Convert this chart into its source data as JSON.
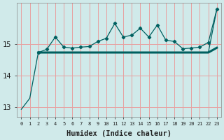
{
  "title": "",
  "xlabel": "Humidex (Indice chaleur)",
  "bg_color": "#d0eaea",
  "grid_color": "#e8a0a0",
  "line_color": "#006060",
  "xlim": [
    -0.5,
    23.5
  ],
  "ylim": [
    12.7,
    16.3
  ],
  "yticks": [
    13,
    14,
    15
  ],
  "xtick_labels": [
    "0",
    "1",
    "2",
    "3",
    "4",
    "5",
    "6",
    "7",
    "8",
    "9",
    "10",
    "11",
    "12",
    "13",
    "14",
    "15",
    "16",
    "17",
    "18",
    "19",
    "20",
    "21",
    "22",
    "23"
  ],
  "line_diagonal_x": [
    0,
    1,
    2,
    3,
    4,
    5,
    6,
    7,
    8,
    9,
    10,
    11,
    12,
    13,
    14,
    15,
    16,
    17,
    18,
    19,
    20,
    21,
    22,
    23
  ],
  "line_diagonal_y": [
    12.93,
    13.28,
    14.73,
    14.73,
    14.73,
    14.73,
    14.73,
    14.73,
    14.73,
    14.73,
    14.73,
    14.73,
    14.73,
    14.73,
    14.73,
    14.73,
    14.73,
    14.73,
    14.73,
    14.73,
    14.73,
    14.73,
    14.73,
    16.1
  ],
  "line_flat_x": [
    2,
    3,
    4,
    5,
    6,
    7,
    8,
    9,
    10,
    11,
    12,
    13,
    14,
    15,
    16,
    17,
    18,
    19,
    20,
    21,
    22,
    23
  ],
  "line_flat_y": [
    14.73,
    14.73,
    14.73,
    14.73,
    14.73,
    14.73,
    14.73,
    14.73,
    14.73,
    14.73,
    14.73,
    14.73,
    14.73,
    14.73,
    14.73,
    14.73,
    14.73,
    14.73,
    14.73,
    14.73,
    14.73,
    14.88
  ],
  "line_jagged_x": [
    2,
    3,
    4,
    5,
    6,
    7,
    8,
    9,
    10,
    11,
    12,
    13,
    14,
    15,
    16,
    17,
    18,
    19,
    20,
    21,
    22,
    23
  ],
  "line_jagged_y": [
    14.73,
    14.83,
    15.22,
    14.9,
    14.87,
    14.9,
    14.92,
    15.08,
    15.18,
    15.65,
    15.22,
    15.28,
    15.5,
    15.22,
    15.6,
    15.12,
    15.08,
    14.85,
    14.87,
    14.9,
    15.05,
    16.1
  ]
}
